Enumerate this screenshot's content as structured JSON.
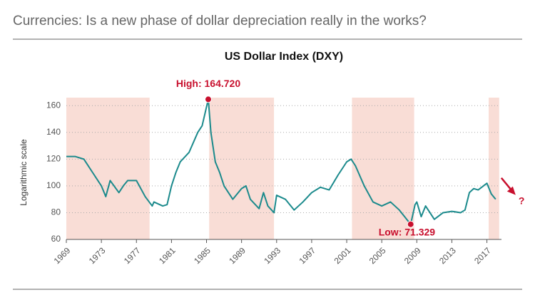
{
  "header": {
    "title": "Currencies: Is a new phase of dollar depreciation really in the works?"
  },
  "chart_data": {
    "type": "line",
    "title": "US Dollar Index (DXY)",
    "y_label": "Logarithmic scale",
    "x": [
      1969,
      1970,
      1971,
      1972,
      1973,
      1973.5,
      1974,
      1975,
      1975.5,
      1976,
      1977,
      1978,
      1978.8,
      1979,
      1980,
      1980.5,
      1981,
      1981.5,
      1982,
      1983,
      1984,
      1984.5,
      1985.2,
      1985.5,
      1986,
      1986.5,
      1987,
      1988,
      1989,
      1989.5,
      1990,
      1991,
      1991.5,
      1992,
      1992.7,
      1993,
      1994,
      1995,
      1996,
      1997,
      1998,
      1999,
      2000,
      2001,
      2001.5,
      2002,
      2003,
      2004,
      2005,
      2006,
      2007,
      2008.3,
      2008.8,
      2009,
      2009.5,
      2010,
      2011,
      2012,
      2013,
      2014,
      2014.5,
      2015,
      2015.5,
      2016,
      2017,
      2017.5,
      2018
    ],
    "series": [
      {
        "name": "US Dollar Index",
        "color": "#1b8a8c",
        "values": [
          122,
          122,
          120,
          110,
          100,
          92,
          104,
          95,
          100,
          104,
          104,
          92,
          85,
          88,
          85,
          86,
          100,
          110,
          118,
          125,
          140,
          145,
          164.72,
          140,
          118,
          110,
          100,
          90,
          98,
          100,
          90,
          83,
          95,
          85,
          80,
          93,
          90,
          82,
          88,
          95,
          99,
          97,
          108,
          118,
          120,
          115,
          100,
          88,
          85,
          88,
          82,
          71.329,
          86,
          88,
          77,
          85,
          75,
          80,
          81,
          80,
          82,
          95,
          98,
          97,
          102,
          94,
          90
        ]
      }
    ],
    "shaded_ranges": [
      [
        1969,
        1978.5
      ],
      [
        1985.3,
        1992.7
      ],
      [
        2001.6,
        2008.7
      ],
      [
        2017.2,
        2018.4
      ]
    ],
    "shade_color": "#f9ddd6",
    "annotations": [
      {
        "text": "High: 164.720",
        "x": 1985.2,
        "value": 164.72
      },
      {
        "text": "Low: 71.329",
        "x": 2008.3,
        "value": 71.329
      }
    ],
    "annotation_color": "#c8102e",
    "end_mark": "?",
    "xlim": [
      1969,
      2018.5
    ],
    "xticks": [
      1969,
      1973,
      1977,
      1981,
      1985,
      1989,
      1993,
      1997,
      2001,
      2005,
      2009,
      2013,
      2017
    ],
    "ylim": [
      60,
      166
    ],
    "yticks": [
      60,
      80,
      100,
      120,
      140,
      160
    ],
    "grid": true,
    "log_scale": false
  }
}
